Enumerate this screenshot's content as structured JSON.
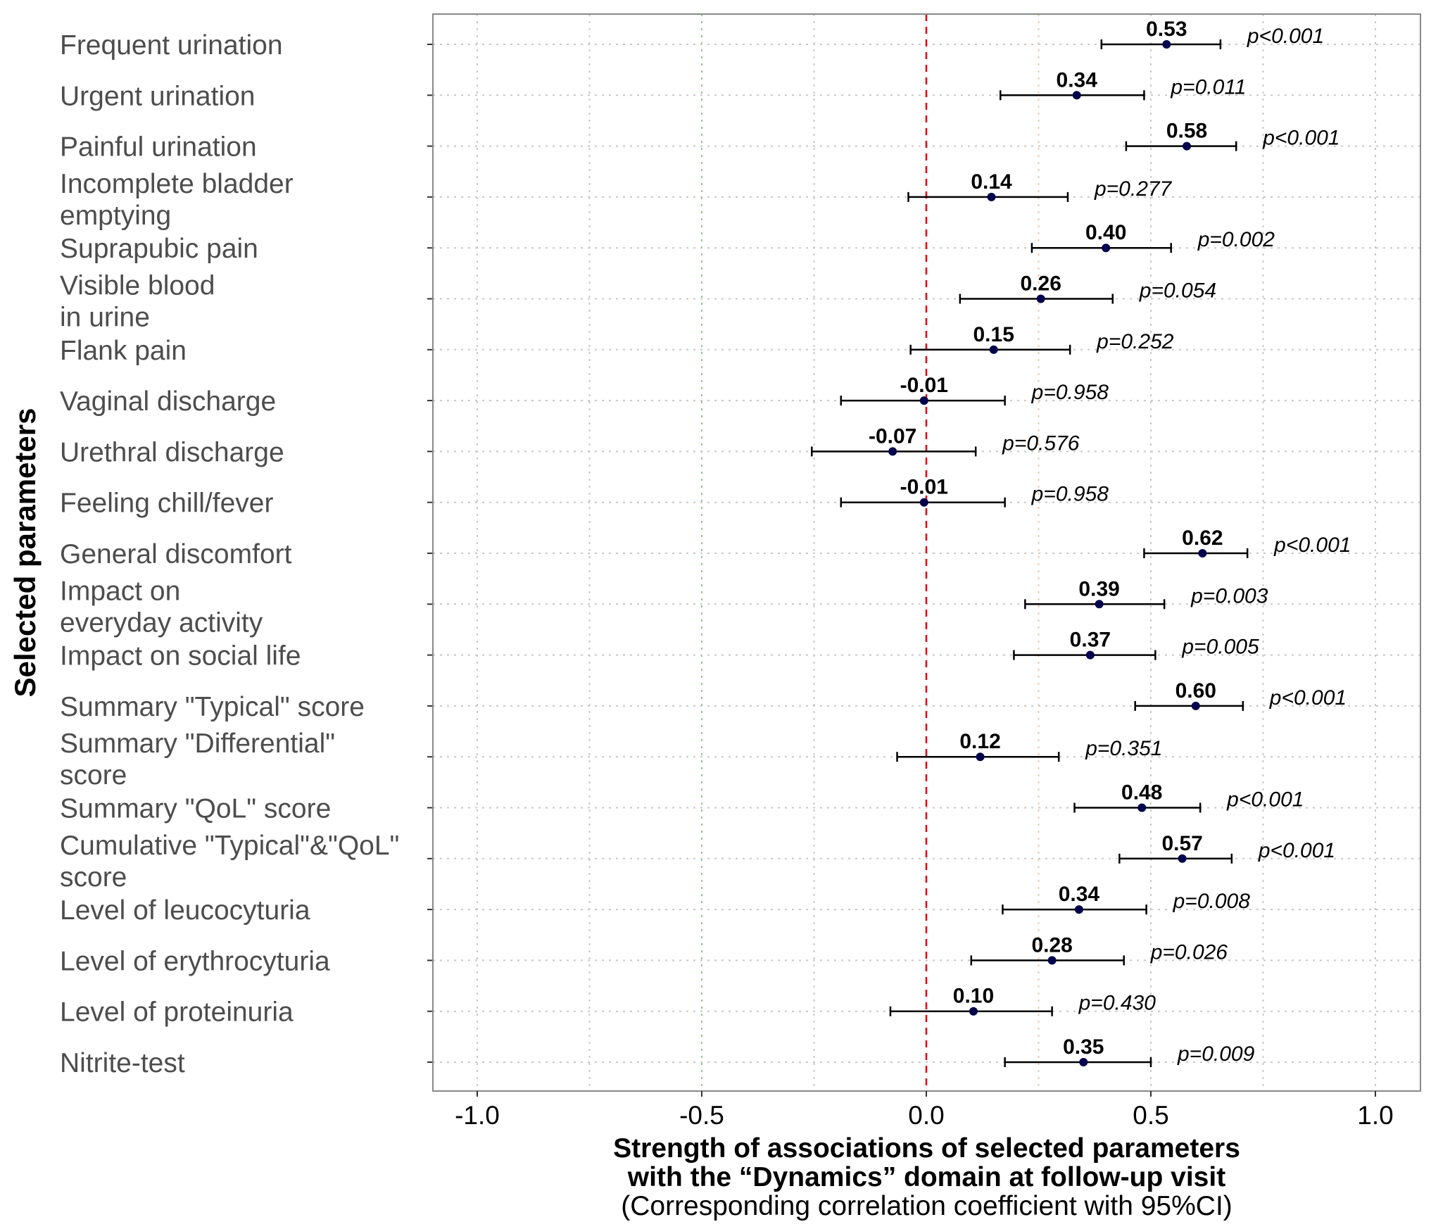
{
  "chart_data": {
    "type": "forest",
    "ylabel": "Selected parameters",
    "xlabel_line1": "Strength of associations of selected parameters",
    "xlabel_line2": "with the “Dynamics” domain at follow-up visit",
    "xlabel_line3": "(Corresponding correlation coefficient with 95%CI)",
    "xlim": [
      -1.1,
      1.1
    ],
    "x_ticks": [
      -1.0,
      -0.5,
      0.0,
      0.5,
      1.0
    ],
    "x_tick_labels": [
      "-1.0",
      "-0.5",
      "0.0",
      "0.5",
      "1.0"
    ],
    "reference_line": 0,
    "colors": {
      "point": "#00004d",
      "reference": "#e8000b",
      "grid": "#c8c8c8",
      "grid_green": "#88cc88",
      "grid_orange": "#f2c9a8",
      "panel_border": "#888888"
    },
    "rows": [
      {
        "label": [
          "Frequent urination"
        ],
        "value": 0.535,
        "value_label": "0.53",
        "ci_low": 0.39,
        "ci_high": 0.655,
        "p": "p<0.001"
      },
      {
        "label": [
          "Urgent urination"
        ],
        "value": 0.335,
        "value_label": "0.34",
        "ci_low": 0.165,
        "ci_high": 0.485,
        "p": "p=0.011"
      },
      {
        "label": [
          "Painful urination"
        ],
        "value": 0.58,
        "value_label": "0.58",
        "ci_low": 0.445,
        "ci_high": 0.69,
        "p": "p<0.001"
      },
      {
        "label": [
          "Incomplete bladder",
          "emptying"
        ],
        "value": 0.145,
        "value_label": "0.14",
        "ci_low": -0.04,
        "ci_high": 0.315,
        "p": "p=0.277"
      },
      {
        "label": [
          "Suprapubic pain"
        ],
        "value": 0.4,
        "value_label": "0.40",
        "ci_low": 0.235,
        "ci_high": 0.545,
        "p": "p=0.002"
      },
      {
        "label": [
          "Visible blood",
          "in urine"
        ],
        "value": 0.255,
        "value_label": "0.26",
        "ci_low": 0.075,
        "ci_high": 0.415,
        "p": "p=0.054"
      },
      {
        "label": [
          "Flank pain"
        ],
        "value": 0.15,
        "value_label": "0.15",
        "ci_low": -0.035,
        "ci_high": 0.32,
        "p": "p=0.252"
      },
      {
        "label": [
          "Vaginal discharge"
        ],
        "value": -0.005,
        "value_label": "-0.01",
        "ci_low": -0.19,
        "ci_high": 0.175,
        "p": "p=0.958"
      },
      {
        "label": [
          "Urethral discharge"
        ],
        "value": -0.075,
        "value_label": "-0.07",
        "ci_low": -0.255,
        "ci_high": 0.11,
        "p": "p=0.576"
      },
      {
        "label": [
          "Feeling chill/fever"
        ],
        "value": -0.005,
        "value_label": "-0.01",
        "ci_low": -0.19,
        "ci_high": 0.175,
        "p": "p=0.958"
      },
      {
        "label": [
          "General discomfort"
        ],
        "value": 0.615,
        "value_label": "0.62",
        "ci_low": 0.485,
        "ci_high": 0.715,
        "p": "p<0.001"
      },
      {
        "label": [
          "Impact on",
          "everyday activity"
        ],
        "value": 0.385,
        "value_label": "0.39",
        "ci_low": 0.22,
        "ci_high": 0.53,
        "p": "p=0.003"
      },
      {
        "label": [
          "Impact on social life"
        ],
        "value": 0.365,
        "value_label": "0.37",
        "ci_low": 0.195,
        "ci_high": 0.51,
        "p": "p=0.005"
      },
      {
        "label": [
          "Summary \"Typical\" score"
        ],
        "value": 0.6,
        "value_label": "0.60",
        "ci_low": 0.465,
        "ci_high": 0.705,
        "p": "p<0.001"
      },
      {
        "label": [
          "Summary \"Differential\"",
          "score"
        ],
        "value": 0.12,
        "value_label": "0.12",
        "ci_low": -0.065,
        "ci_high": 0.295,
        "p": "p=0.351"
      },
      {
        "label": [
          "Summary \"QoL\" score"
        ],
        "value": 0.48,
        "value_label": "0.48",
        "ci_low": 0.33,
        "ci_high": 0.61,
        "p": "p<0.001"
      },
      {
        "label": [
          "Cumulative \"Typical\"&\"QoL\"",
          "score"
        ],
        "value": 0.57,
        "value_label": "0.57",
        "ci_low": 0.43,
        "ci_high": 0.68,
        "p": "p<0.001"
      },
      {
        "label": [
          "Level of leucocyturia"
        ],
        "value": 0.34,
        "value_label": "0.34",
        "ci_low": 0.17,
        "ci_high": 0.49,
        "p": "p=0.008"
      },
      {
        "label": [
          "Level of erythrocyturia"
        ],
        "value": 0.28,
        "value_label": "0.28",
        "ci_low": 0.1,
        "ci_high": 0.44,
        "p": "p=0.026"
      },
      {
        "label": [
          "Level of proteinuria"
        ],
        "value": 0.105,
        "value_label": "0.10",
        "ci_low": -0.08,
        "ci_high": 0.28,
        "p": "p=0.430"
      },
      {
        "label": [
          "Nitrite-test"
        ],
        "value": 0.35,
        "value_label": "0.35",
        "ci_low": 0.175,
        "ci_high": 0.5,
        "p": "p=0.009"
      }
    ]
  }
}
